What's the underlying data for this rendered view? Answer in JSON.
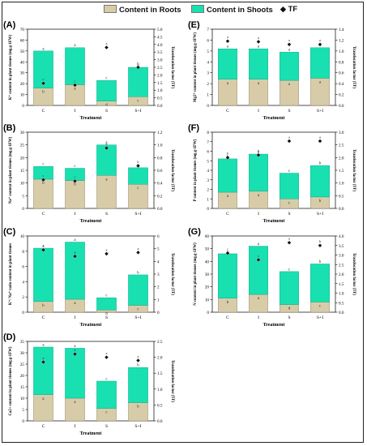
{
  "legend": [
    {
      "label": "Content in Roots",
      "color": "#d8cca8"
    },
    {
      "label": "Content in Shoots",
      "color": "#19e0b0"
    },
    {
      "label": "TF",
      "marker": "diamond-icon"
    }
  ],
  "chart_data": [
    {
      "type": "bar",
      "stacked": true,
      "panel": "(A)",
      "categories": [
        "C",
        "I",
        "S",
        "S+I"
      ],
      "xlabel": "Treatment",
      "ylabel": "K⁺ content in plant tissues (mg.g-1FW)",
      "y2label": "Translocation factor (TF)",
      "ylim": [
        0,
        70
      ],
      "yticks": [
        0,
        10,
        20,
        30,
        40,
        50,
        60,
        70
      ],
      "y2lim": [
        0,
        5
      ],
      "y2ticks": [
        "0.0",
        "0.5",
        "1.0",
        "1.5",
        "2.0",
        "2.5",
        "3.0",
        "3.5",
        "4.0",
        "4.5",
        "5.0"
      ],
      "series": [
        {
          "name": "Content in Roots",
          "values": [
            16,
            19,
            4,
            8
          ],
          "letters": [
            "b",
            "a",
            "d",
            "c"
          ]
        },
        {
          "name": "Content in Shoots",
          "values": [
            34,
            34,
            19,
            27
          ],
          "letters": [
            "a",
            "a",
            "c",
            "b"
          ]
        }
      ],
      "tf": {
        "values": [
          1.45,
          1.33,
          3.8,
          2.5
        ],
        "letters": [
          "c",
          "c",
          "a",
          "b"
        ]
      }
    },
    {
      "type": "bar",
      "stacked": true,
      "panel": "(B)",
      "categories": [
        "C",
        "I",
        "S",
        "S+I"
      ],
      "xlabel": "Treatment",
      "ylabel": "Na⁺ content in plant tissues (mg.g-1FW)",
      "y2label": "Translocation factor (TF)",
      "ylim": [
        0,
        30
      ],
      "yticks": [
        0,
        5,
        10,
        15,
        20,
        25,
        30
      ],
      "y2lim": [
        0,
        1.2
      ],
      "y2ticks": [
        "0.0",
        "0.2",
        "0.4",
        "0.6",
        "0.8",
        "1.0",
        "1.2"
      ],
      "series": [
        {
          "name": "Content in Roots",
          "values": [
            11.5,
            11,
            13,
            9.5
          ],
          "letters": [
            "b",
            "b",
            "a",
            "c"
          ]
        },
        {
          "name": "Content in Shoots",
          "values": [
            5,
            4.8,
            12,
            6.5
          ],
          "letters": [
            "c",
            "c",
            "a",
            "b"
          ]
        }
      ],
      "tf": {
        "values": [
          0.45,
          0.43,
          0.95,
          0.67
        ],
        "letters": [
          "c",
          "c",
          "a",
          "b"
        ]
      }
    },
    {
      "type": "bar",
      "stacked": true,
      "panel": "(C)",
      "categories": [
        "C",
        "I",
        "S",
        "S+I"
      ],
      "xlabel": "Treatment",
      "ylabel": "K⁺/ Na⁺ ratio content in plant tissues",
      "y2label": "Translocation factor (TF)",
      "ylim": [
        0,
        10
      ],
      "yticks": [
        0,
        2,
        4,
        6,
        8,
        10
      ],
      "y2lim": [
        0,
        6
      ],
      "y2ticks": [
        "0",
        "1",
        "2",
        "3",
        "4",
        "5",
        "6"
      ],
      "series": [
        {
          "name": "Content in Roots",
          "values": [
            1.4,
            1.7,
            0.3,
            0.9
          ],
          "letters": [
            "b",
            "a",
            "d",
            "c"
          ]
        },
        {
          "name": "Content in Shoots",
          "values": [
            7.0,
            7.5,
            1.6,
            4.0
          ],
          "letters": [
            "a",
            "a",
            "c",
            "b"
          ]
        }
      ],
      "tf": {
        "values": [
          4.9,
          4.4,
          4.6,
          4.7
        ],
        "letters": [
          "a",
          "a",
          "a",
          "a"
        ]
      }
    },
    {
      "type": "bar",
      "stacked": true,
      "panel": "(D)",
      "categories": [
        "C",
        "I",
        "S",
        "S+I"
      ],
      "xlabel": "Treatment",
      "ylabel": "Ca2+ content in plant tissues (mg.g-1FW)",
      "y2label": "Translocation factor (TF)",
      "ylim": [
        0,
        35
      ],
      "yticks": [
        0,
        5,
        10,
        15,
        20,
        25,
        30,
        35
      ],
      "y2lim": [
        0,
        2.5
      ],
      "y2ticks": [
        "0.0",
        "0.5",
        "1.0",
        "1.5",
        "2.0",
        "2.5"
      ],
      "series": [
        {
          "name": "Content in Roots",
          "values": [
            11.5,
            10,
            5.5,
            8
          ],
          "letters": [
            "a",
            "a",
            "c",
            "b"
          ]
        },
        {
          "name": "Content in Shoots",
          "values": [
            21,
            22,
            12,
            15.5
          ],
          "letters": [
            "a",
            "a",
            "c",
            "b"
          ]
        }
      ],
      "tf": {
        "values": [
          1.85,
          2.1,
          2.0,
          1.9
        ],
        "letters": [
          "a",
          "a",
          "a",
          "a"
        ]
      }
    },
    {
      "type": "bar",
      "stacked": true,
      "panel": "(E)",
      "categories": [
        "C",
        "I",
        "S",
        "S+I"
      ],
      "xlabel": "Treatment",
      "ylabel": "Mg2⁺ content in plant tissues (mg.g-1FW)",
      "y2label": "Translocation factor (TF)",
      "ylim": [
        0,
        7
      ],
      "yticks": [
        0,
        1,
        2,
        3,
        4,
        5,
        6,
        7
      ],
      "y2lim": [
        0,
        1.4
      ],
      "y2ticks": [
        "0.0",
        "0.2",
        "0.4",
        "0.6",
        "0.8",
        "1.0",
        "1.2",
        "1.4"
      ],
      "series": [
        {
          "name": "Content in Roots",
          "values": [
            2.4,
            2.4,
            2.3,
            2.5
          ],
          "letters": [
            "a",
            "a",
            "a",
            "a"
          ]
        },
        {
          "name": "Content in Shoots",
          "values": [
            2.8,
            2.8,
            2.6,
            2.8
          ],
          "letters": [
            "a",
            "a",
            "a",
            "a"
          ]
        }
      ],
      "tf": {
        "values": [
          1.18,
          1.17,
          1.12,
          1.12
        ],
        "letters": [
          "a",
          "a",
          "a",
          "a"
        ]
      }
    },
    {
      "type": "bar",
      "stacked": true,
      "panel": "(F)",
      "categories": [
        "C",
        "I",
        "S",
        "S+I"
      ],
      "xlabel": "Treatment",
      "ylabel": "P content in plant tissues (mg.g-1FW)",
      "y2label": "Translocation factor (TF)",
      "ylim": [
        0,
        8
      ],
      "yticks": [
        0,
        1,
        2,
        3,
        4,
        5,
        6,
        7,
        8
      ],
      "y2lim": [
        0,
        3
      ],
      "y2ticks": [
        "0.0",
        "0.5",
        "1.0",
        "1.5",
        "2.0",
        "2.5",
        "3.0"
      ],
      "series": [
        {
          "name": "Content in Roots",
          "values": [
            1.7,
            1.8,
            1.0,
            1.2
          ],
          "letters": [
            "a",
            "a",
            "c",
            "b"
          ]
        },
        {
          "name": "Content in Shoots",
          "values": [
            3.5,
            3.9,
            2.7,
            3.3
          ],
          "letters": [
            "b",
            "a",
            "c",
            "b"
          ]
        }
      ],
      "tf": {
        "values": [
          2.0,
          2.1,
          2.65,
          2.65
        ],
        "letters": [
          "b",
          "b",
          "a",
          "a"
        ]
      }
    },
    {
      "type": "bar",
      "stacked": true,
      "panel": "(G)",
      "categories": [
        "C",
        "I",
        "S",
        "S+I"
      ],
      "xlabel": "Treatment",
      "ylabel": "N content in plant tissues (mg.g-1FW)",
      "y2label": "Translocation factor (TF)",
      "ylim": [
        0,
        60
      ],
      "yticks": [
        0,
        10,
        20,
        30,
        40,
        50,
        60
      ],
      "y2lim": [
        0,
        4
      ],
      "y2ticks": [
        "0.0",
        "0.5",
        "1.0",
        "1.5",
        "2.0",
        "2.5",
        "3.0",
        "3.5",
        "4.0"
      ],
      "series": [
        {
          "name": "Content in Roots",
          "values": [
            11,
            14,
            6,
            8
          ],
          "letters": [
            "b",
            "a",
            "d",
            "c"
          ]
        },
        {
          "name": "Content in Shoots",
          "values": [
            35,
            38,
            26,
            30
          ],
          "letters": [
            "a",
            "a",
            "c",
            "b"
          ]
        }
      ],
      "tf": {
        "values": [
          3.1,
          2.75,
          3.65,
          3.5
        ],
        "letters": [
          "c",
          "c",
          "a",
          "b"
        ]
      }
    }
  ]
}
